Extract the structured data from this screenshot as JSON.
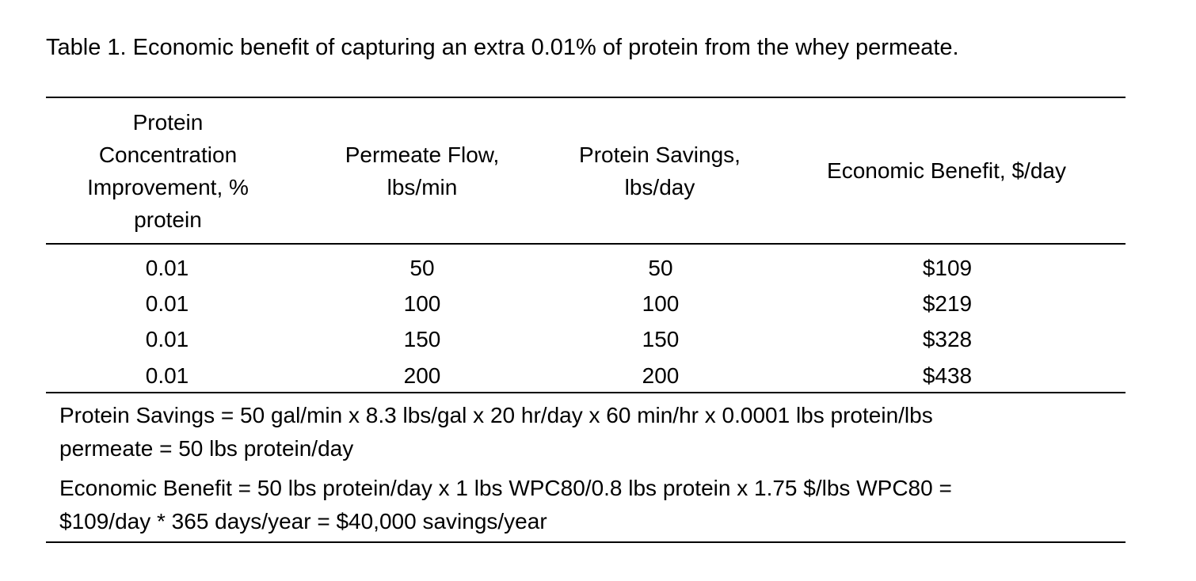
{
  "caption": "Table 1. Economic benefit of capturing an extra 0.01% of protein from the whey permeate.",
  "table": {
    "headers": [
      [
        "Protein",
        "Concentration",
        "Improvement, %",
        "protein"
      ],
      [
        "Permeate Flow,",
        "lbs/min"
      ],
      [
        "Protein Savings,",
        "lbs/day"
      ],
      [
        "Economic Benefit, $/day"
      ]
    ],
    "rows": [
      [
        "0.01",
        "50",
        "50",
        "$109"
      ],
      [
        "0.01",
        "100",
        "100",
        "$219"
      ],
      [
        "0.01",
        "150",
        "150",
        "$328"
      ],
      [
        "0.01",
        "200",
        "200",
        "$438"
      ]
    ]
  },
  "notes": {
    "protein_savings_line1": "Protein Savings = 50 gal/min x 8.3 lbs/gal x 20 hr/day x 60 min/hr x 0.0001 lbs protein/lbs",
    "protein_savings_line2": "permeate = 50 lbs protein/day",
    "economic_benefit_line1": "Economic Benefit = 50 lbs protein/day x 1 lbs WPC80/0.8 lbs protein x 1.75 $/lbs WPC80 =",
    "economic_benefit_line2": "$109/day * 365 days/year = $40,000 savings/year"
  }
}
